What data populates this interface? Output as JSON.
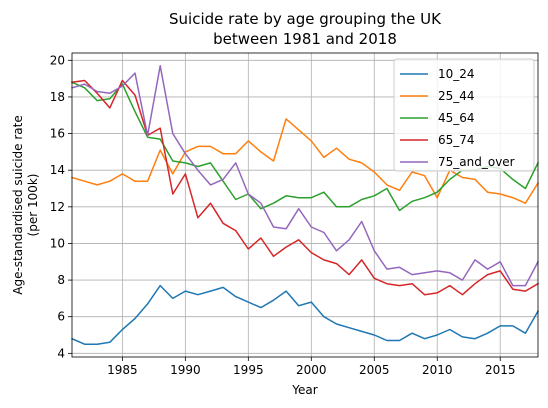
{
  "chart_data": {
    "type": "line",
    "title": "Suicide rate by age grouping the UK",
    "subtitle": "between 1981 and 2018",
    "xlabel": "Year",
    "ylabel": "Age-standardised suicide rate",
    "ylabel_sub": "(per 100k)",
    "xlim": [
      1981,
      2018
    ],
    "ylim": [
      3.8,
      20.4
    ],
    "xticks": [
      1985,
      1990,
      1995,
      2000,
      2005,
      2010,
      2015
    ],
    "yticks": [
      4,
      6,
      8,
      10,
      12,
      14,
      16,
      18,
      20
    ],
    "grid": true,
    "legend_position": "top-right",
    "x": [
      1981,
      1982,
      1983,
      1984,
      1985,
      1986,
      1987,
      1988,
      1989,
      1990,
      1991,
      1992,
      1993,
      1994,
      1995,
      1996,
      1997,
      1998,
      1999,
      2000,
      2001,
      2002,
      2003,
      2004,
      2005,
      2006,
      2007,
      2008,
      2009,
      2010,
      2011,
      2012,
      2013,
      2014,
      2015,
      2016,
      2017,
      2018
    ],
    "series": [
      {
        "name": "10_24",
        "color": "#1f77b4",
        "values": [
          4.8,
          4.5,
          4.5,
          4.6,
          5.3,
          5.9,
          6.7,
          7.7,
          7.0,
          7.4,
          7.2,
          7.4,
          7.6,
          7.1,
          6.8,
          6.5,
          6.9,
          7.4,
          6.6,
          6.8,
          6.0,
          5.6,
          5.4,
          5.2,
          5.0,
          4.7,
          4.7,
          5.1,
          4.8,
          5.0,
          5.3,
          4.9,
          4.8,
          5.1,
          5.5,
          5.5,
          5.1,
          6.3
        ]
      },
      {
        "name": "25_44",
        "color": "#ff7f0e",
        "values": [
          13.6,
          13.4,
          13.2,
          13.4,
          13.8,
          13.4,
          13.4,
          15.1,
          13.8,
          15.0,
          15.3,
          15.3,
          14.9,
          14.9,
          15.6,
          15.0,
          14.5,
          16.8,
          16.2,
          15.6,
          14.7,
          15.2,
          14.6,
          14.4,
          13.9,
          13.2,
          12.9,
          13.9,
          13.7,
          12.5,
          14.0,
          13.6,
          13.5,
          12.8,
          12.7,
          12.5,
          12.2,
          13.3
        ]
      },
      {
        "name": "45_64",
        "color": "#2ca02c",
        "values": [
          18.8,
          18.5,
          17.8,
          17.9,
          18.7,
          17.2,
          15.8,
          15.7,
          14.5,
          14.4,
          14.2,
          14.4,
          13.4,
          12.4,
          12.7,
          11.9,
          12.2,
          12.6,
          12.5,
          12.5,
          12.8,
          12.0,
          12.0,
          12.4,
          12.6,
          13.0,
          11.8,
          12.3,
          12.5,
          12.8,
          13.5,
          14.0,
          14.0,
          14.2,
          14.1,
          13.5,
          13.0,
          14.4
        ]
      },
      {
        "name": "65_74",
        "color": "#d62728",
        "values": [
          18.8,
          18.9,
          18.2,
          17.4,
          18.9,
          18.1,
          15.9,
          16.3,
          12.7,
          13.8,
          11.4,
          12.2,
          11.1,
          10.7,
          9.7,
          10.3,
          9.3,
          9.8,
          10.2,
          9.5,
          9.1,
          8.9,
          8.3,
          9.1,
          8.1,
          7.8,
          7.7,
          7.8,
          7.2,
          7.3,
          7.7,
          7.2,
          7.8,
          8.3,
          8.5,
          7.5,
          7.4,
          7.8
        ]
      },
      {
        "name": "75_and_over",
        "color": "#9467bd",
        "values": [
          18.5,
          18.7,
          18.3,
          18.2,
          18.6,
          19.3,
          15.9,
          19.7,
          16.0,
          14.9,
          14.0,
          13.2,
          13.5,
          14.4,
          12.7,
          12.2,
          10.9,
          10.8,
          11.9,
          10.9,
          10.6,
          9.6,
          10.2,
          11.2,
          9.6,
          8.6,
          8.7,
          8.3,
          8.4,
          8.5,
          8.4,
          8.0,
          9.1,
          8.6,
          9.0,
          7.7,
          7.7,
          9.0
        ]
      }
    ]
  }
}
